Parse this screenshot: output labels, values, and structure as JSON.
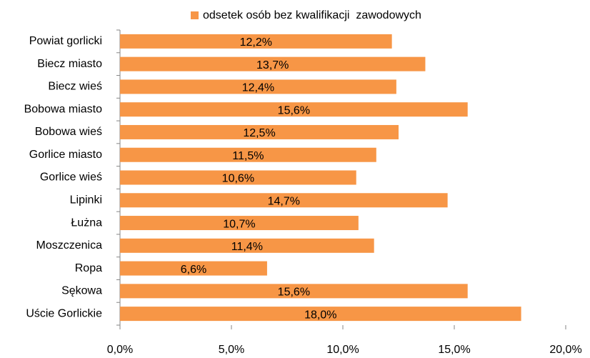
{
  "chart_data": {
    "type": "bar",
    "orientation": "horizontal",
    "categories": [
      "Powiat gorlicki",
      "Biecz miasto",
      "Biecz wieś",
      "Bobowa miasto",
      "Bobowa wieś",
      "Gorlice miasto",
      "Gorlice wieś",
      "Lipinki",
      "Łużna",
      "Moszczenica",
      "Ropa",
      "Sękowa",
      "Uście Gorlickie"
    ],
    "series": [
      {
        "name": "odsetek osób bez kwalifikacji  zawodowych",
        "color": "#f79646",
        "values": [
          12.2,
          13.7,
          12.4,
          15.6,
          12.5,
          11.5,
          10.6,
          14.7,
          10.7,
          11.4,
          6.6,
          15.6,
          18.0
        ],
        "value_labels": [
          "12,2%",
          "13,7%",
          "12,4%",
          "15,6%",
          "12,5%",
          "11,5%",
          "10,6%",
          "14,7%",
          "10,7%",
          "11,4%",
          "6,6%",
          "15,6%",
          "18,0%"
        ]
      }
    ],
    "xlim": [
      0,
      20
    ],
    "xticks": [
      {
        "value": 0,
        "label": "0,0%"
      },
      {
        "value": 5,
        "label": "5,0%"
      },
      {
        "value": 10,
        "label": "10,0%"
      },
      {
        "value": 15,
        "label": "15,0%"
      },
      {
        "value": 20,
        "label": "20,0%"
      }
    ],
    "legend": "top"
  }
}
